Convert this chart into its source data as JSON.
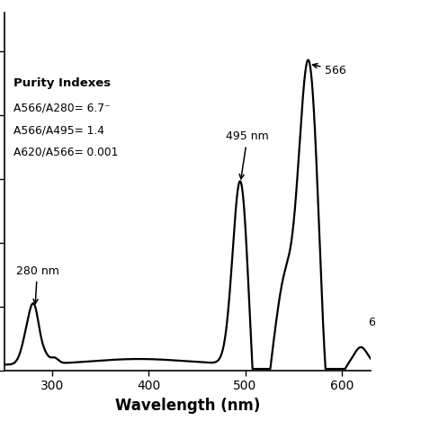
{
  "title": "",
  "xlabel": "Wavelength (nm)",
  "xlim": [
    250,
    630
  ],
  "ylim": [
    0.0,
    1.12
  ],
  "xticks": [
    300,
    400,
    500,
    600
  ],
  "xtick_labels": [
    "300",
    "400",
    "500",
    "600"
  ],
  "purity_title": "Purity Indexes",
  "purity_lines": [
    "A566/A280= 6.7⁻",
    "A566/A495= 1.4",
    "A620/A566= 0.001"
  ],
  "ann_280_label": "280 nm",
  "ann_495_label": "495 nm",
  "ann_566_label": "566",
  "ann_620_label": "6",
  "line_color": "#000000",
  "bg_color": "#ffffff",
  "linewidth": 1.6
}
